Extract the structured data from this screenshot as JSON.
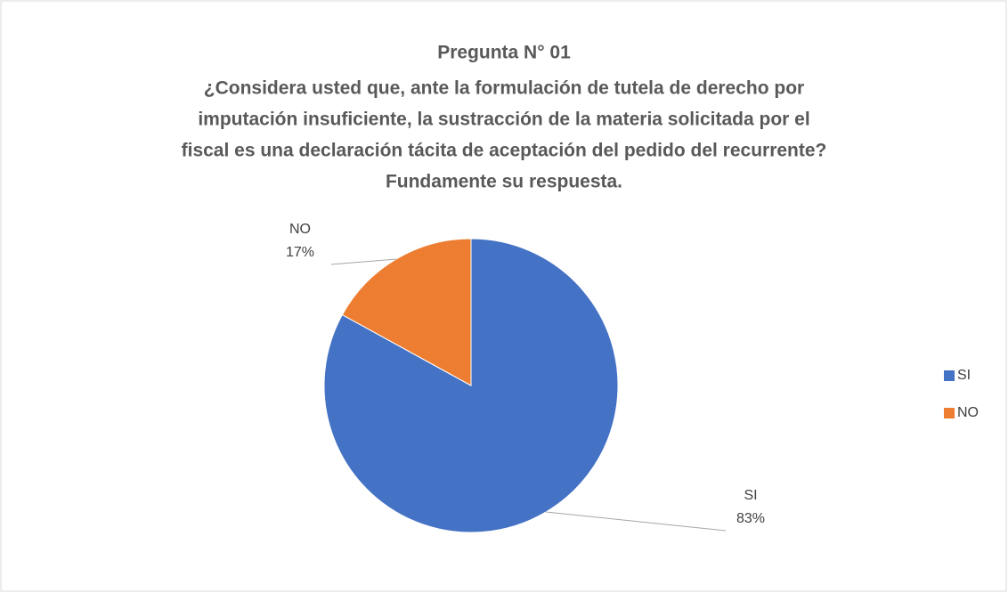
{
  "chart_data": {
    "type": "pie",
    "title": "Pregunta N° 01",
    "subtitle": [
      "¿Considera usted que, ante la formulación de tutela de derecho por",
      "imputación insuficiente, la sustracción de la materia solicitada por el",
      "fiscal es una declaración tácita de aceptación del pedido del recurrente?",
      "Fundamente su respuesta."
    ],
    "categories": [
      "SI",
      "NO"
    ],
    "values": [
      83,
      17
    ],
    "value_labels": [
      "83%",
      "17%"
    ],
    "colors": [
      "#4472c4",
      "#ed7d31"
    ],
    "legend": "right"
  }
}
